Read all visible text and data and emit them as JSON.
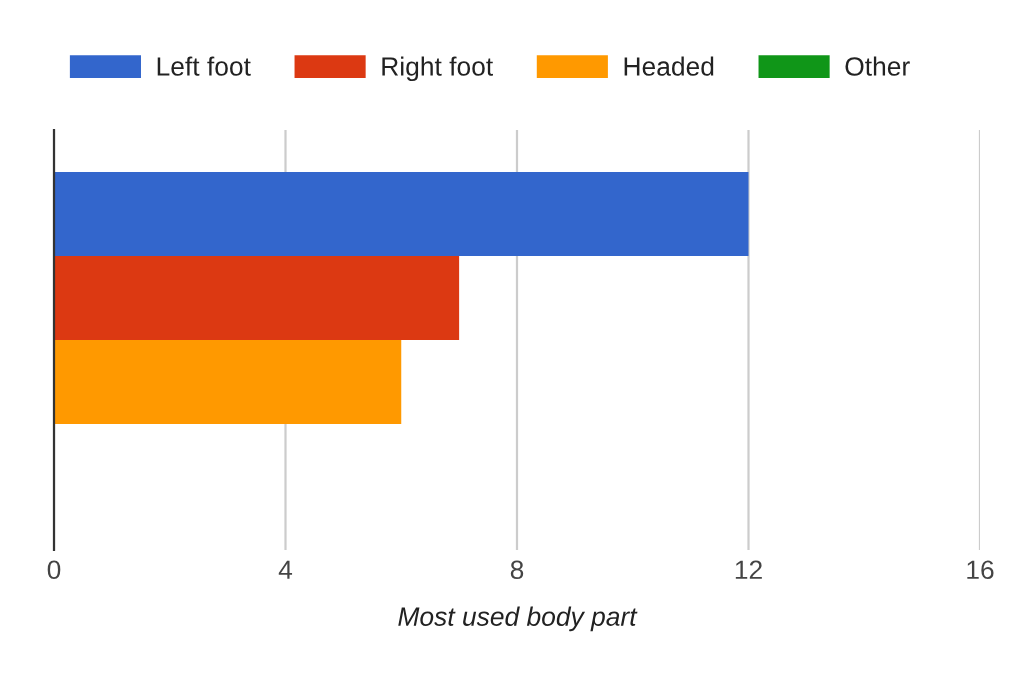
{
  "chart_data": {
    "type": "bar",
    "orientation": "horizontal",
    "xlabel": "Most used body part",
    "categories": [
      null
    ],
    "series": [
      {
        "name": "Left foot",
        "color": "#3366cc",
        "values": [
          12
        ]
      },
      {
        "name": "Right foot",
        "color": "#dc3912",
        "values": [
          7
        ]
      },
      {
        "name": "Headed",
        "color": "#ff9900",
        "values": [
          6
        ]
      },
      {
        "name": "Other",
        "color": "#109618",
        "values": [
          0
        ]
      }
    ],
    "xlim": [
      0,
      16
    ],
    "xticks": [
      0,
      4,
      8,
      12,
      16
    ],
    "grid": "x",
    "legend": "top",
    "tick_labels": "x"
  }
}
